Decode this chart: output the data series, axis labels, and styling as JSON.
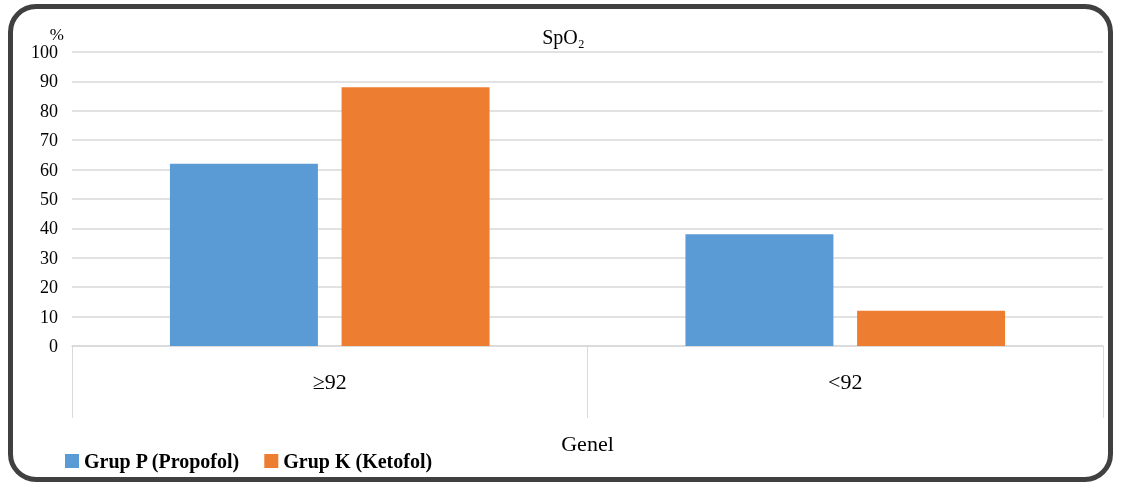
{
  "chart_data": {
    "type": "bar",
    "title": "SpO₂",
    "ylabel": "%",
    "xlabel": "Genel",
    "categories": [
      "≥92",
      "<92"
    ],
    "series": [
      {
        "name": "Grup P (Propofol)",
        "color": "#5b9bd5",
        "values": [
          62,
          38
        ]
      },
      {
        "name": "Grup K (Ketofol)",
        "color": "#ed7d31",
        "values": [
          88,
          12
        ]
      }
    ],
    "ylim": [
      0,
      100
    ],
    "yticks": [
      0,
      10,
      20,
      30,
      40,
      50,
      60,
      70,
      80,
      90,
      100
    ],
    "grid": "y",
    "legend": "bottom left"
  }
}
